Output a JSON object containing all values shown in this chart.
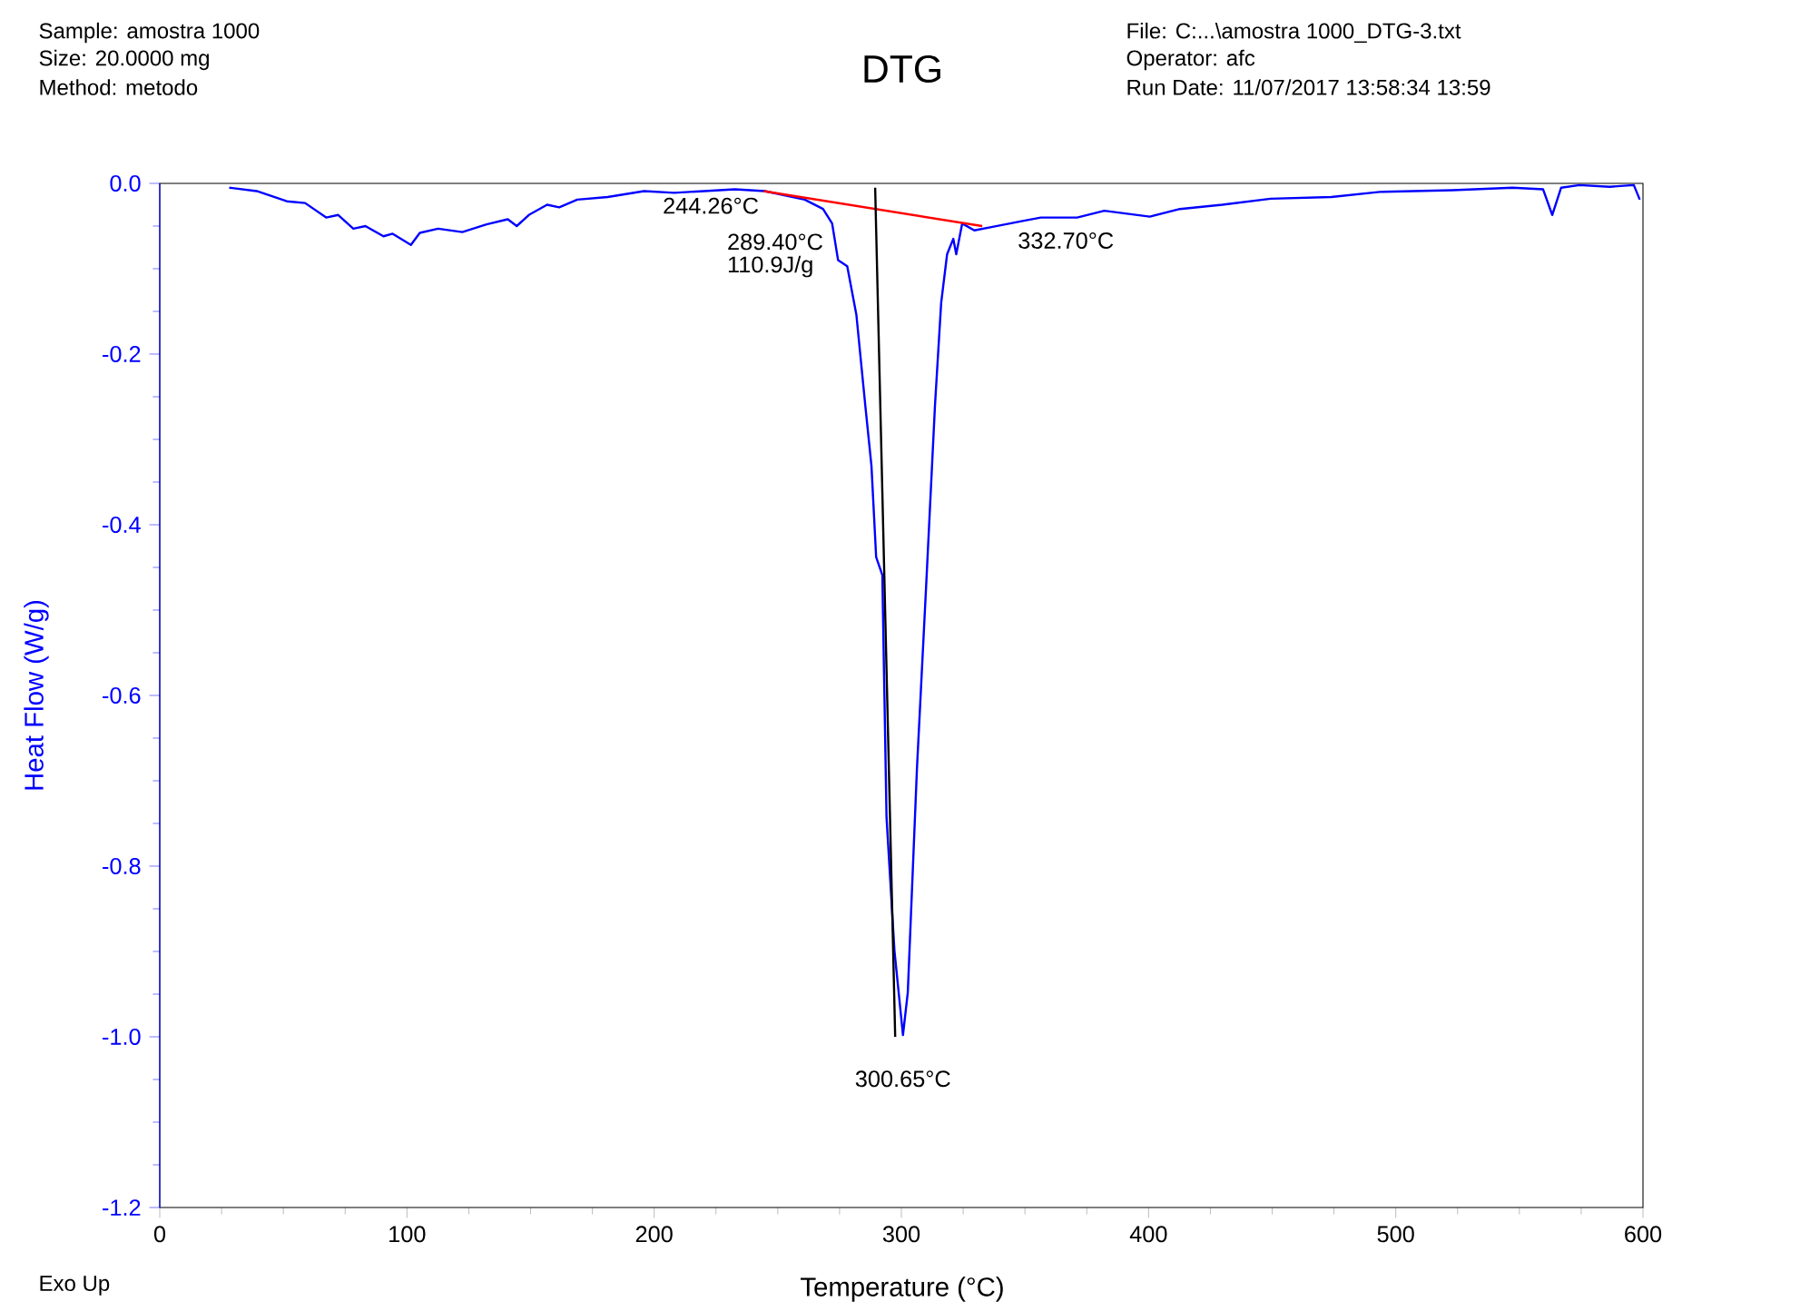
{
  "chart_data": {
    "type": "line",
    "title": "DTG",
    "xlabel": "Temperature (°C)",
    "ylabel": "Heat Flow (W/g)",
    "xlim": [
      0,
      600
    ],
    "ylim": [
      -1.2,
      0
    ],
    "xticks": [
      0,
      100,
      200,
      300,
      400,
      500,
      600
    ],
    "yticks": [
      {
        "value": -1.2,
        "label": "-1.2"
      },
      {
        "value": -1.0,
        "label": "-1.0"
      },
      {
        "value": -0.8,
        "label": "-0.8"
      },
      {
        "value": -0.6,
        "label": "-0.6"
      },
      {
        "value": -0.4,
        "label": "-0.4"
      },
      {
        "value": -0.2,
        "label": "-0.2"
      },
      {
        "value": 0,
        "label": "0.0"
      }
    ],
    "grid": false,
    "marker": "none",
    "line_style": "solid",
    "series": [
      {
        "color": "#0000ff",
        "x": [
          28.1,
          39.2,
          51.4,
          58.8,
          67.3,
          72.2,
          78.3,
          83.2,
          90.5,
          94.2,
          101.6,
          105.2,
          112.6,
          122.4,
          132.2,
          140.8,
          144.4,
          149.3,
          156.7,
          161.6,
          168.9,
          181.2,
          195.9,
          208.1,
          220.3,
          232.6,
          244.8,
          260.9,
          268.3,
          272.0,
          274.4,
          278.1,
          281.8,
          285.4,
          287.9,
          289.8,
          292.3,
          294.0,
          297.2,
          300.65,
          302.6,
          306.3,
          310.0,
          313.6,
          316.1,
          318.5,
          321.0,
          322.2,
          324.6,
          329.5,
          336.9,
          349.1,
          356.4,
          371.1,
          382.1,
          400.5,
          412.7,
          429.8,
          449.4,
          473.9,
          493.5,
          522.9,
          547.3,
          559.6,
          563.3,
          566.9,
          574.3,
          586.5,
          596.3,
          598.7
        ],
        "values": [
          -0.005,
          -0.009,
          -0.021,
          -0.023,
          -0.04,
          -0.037,
          -0.053,
          -0.05,
          -0.062,
          -0.059,
          -0.072,
          -0.058,
          -0.053,
          -0.057,
          -0.048,
          -0.042,
          -0.05,
          -0.037,
          -0.025,
          -0.028,
          -0.019,
          -0.016,
          -0.009,
          -0.011,
          -0.009,
          -0.007,
          -0.009,
          -0.019,
          -0.03,
          -0.047,
          -0.09,
          -0.097,
          -0.154,
          -0.26,
          -0.331,
          -0.438,
          -0.459,
          -0.743,
          -0.899,
          -0.998,
          -0.948,
          -0.686,
          -0.473,
          -0.26,
          -0.14,
          -0.083,
          -0.065,
          -0.083,
          -0.047,
          -0.055,
          -0.051,
          -0.044,
          -0.04,
          -0.04,
          -0.032,
          -0.039,
          -0.03,
          -0.025,
          -0.018,
          -0.016,
          -0.01,
          -0.008,
          -0.005,
          -0.007,
          -0.037,
          -0.005,
          -0.002,
          -0.004,
          -0.002,
          -0.019
        ]
      },
      {
        "type": "line",
        "color": "#ff0000",
        "x": [
          244.26,
          332.7
        ],
        "values": [
          -0.009,
          -0.05
        ]
      },
      {
        "type": "line",
        "color": "#000000",
        "x": [
          289.4,
          297.5
        ],
        "values": [
          -0.005,
          -1.0
        ]
      }
    ],
    "annotations": [
      "Sample: amostra 1000",
      "Size:  20.0000 mg",
      "Method: metodo",
      "File: C:...\\amostra 1000_DTG-3.txt",
      "Operator: afc",
      "Run Date: 11/07/2017 13:58:34 13:59",
      "Exo Up",
      {
        "text": "244.26°C",
        "x": 244.26,
        "y": -0.009
      },
      {
        "text": "289.40°C",
        "x": 289.4,
        "y": -0.03
      },
      "110.9J/g",
      {
        "text": "332.70°C",
        "x": 332.7,
        "y": -0.05
      },
      {
        "text": "300.65°C",
        "x": 300.65,
        "y": -0.998
      }
    ]
  }
}
